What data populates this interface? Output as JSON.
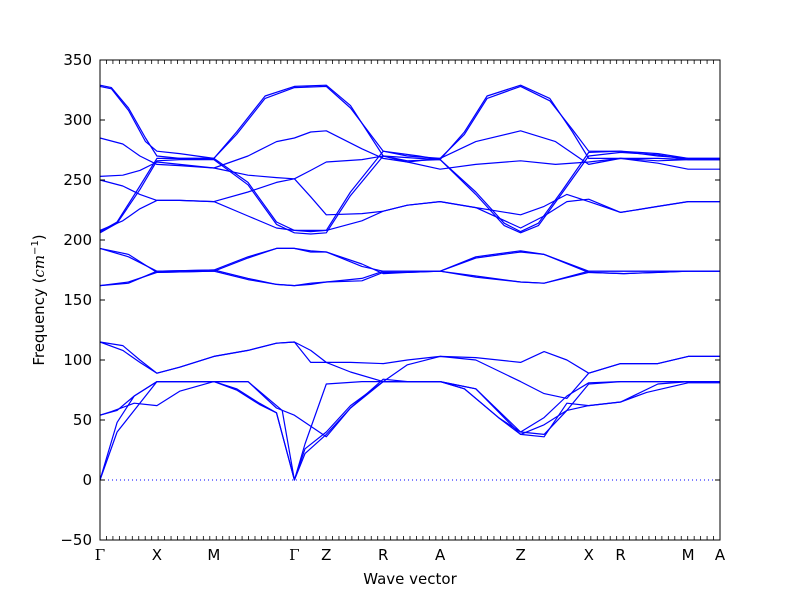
{
  "chart_data": {
    "type": "line",
    "xlabel": "Wave vector",
    "ylabel": {
      "text": "Frequency (",
      "unit_base": "cm",
      "unit_exp": "−1",
      "close": ")"
    },
    "ylim": [
      -50,
      350
    ],
    "yticks": [
      -50,
      0,
      50,
      100,
      150,
      200,
      250,
      300,
      350
    ],
    "grid": false,
    "color": "#0000ff",
    "kpoints": [
      {
        "label": "Γ",
        "x": 0
      },
      {
        "label": "X",
        "x": 0.5
      },
      {
        "label": "M",
        "x": 1.0
      },
      {
        "label": "Γ",
        "x": 1.707
      },
      {
        "label": "Z",
        "x": 1.987
      },
      {
        "label": "R",
        "x": 2.487
      },
      {
        "label": "A",
        "x": 2.987
      },
      {
        "label": "Z",
        "x": 3.694
      },
      {
        "label": "X",
        "x": 4.292
      },
      {
        "label": "R",
        "x": 4.572
      },
      {
        "label": "M",
        "x": 5.165
      },
      {
        "label": "A",
        "x": 5.445
      }
    ],
    "zero_line": 0,
    "series": [
      {
        "x": [
          0,
          0.15,
          0.3,
          0.5,
          0.7,
          0.85,
          1.0,
          1.2,
          1.4,
          1.55,
          1.707,
          1.8,
          1.987,
          2.2,
          2.487,
          2.7,
          2.987,
          3.2,
          3.5,
          3.694,
          3.9,
          4.1,
          4.292,
          4.572,
          4.8,
          5.165,
          5.445
        ],
        "y": [
          0,
          40,
          58,
          82,
          82,
          82,
          82,
          75,
          63,
          56,
          0,
          22,
          38,
          60,
          82,
          82,
          82,
          76,
          52,
          38,
          46,
          58,
          62,
          65,
          73,
          81,
          81
        ]
      },
      {
        "x": [
          0,
          0.15,
          0.3,
          0.5,
          0.7,
          0.85,
          1.0,
          1.2,
          1.4,
          1.55,
          1.707,
          1.8,
          1.987,
          2.2,
          2.487,
          2.7,
          2.987,
          3.2,
          3.5,
          3.694,
          3.9,
          4.1,
          4.292,
          4.572,
          4.8,
          5.165,
          5.445
        ],
        "y": [
          0,
          48,
          70,
          82,
          82,
          82,
          82,
          76,
          64,
          56,
          0,
          26,
          40,
          62,
          82,
          82,
          82,
          76,
          52,
          40,
          52,
          70,
          81,
          82,
          82,
          82,
          82
        ]
      },
      {
        "x": [
          0,
          0.1,
          0.3,
          0.5,
          0.7,
          1.0,
          1.3,
          1.6,
          1.707,
          1.8,
          1.987,
          2.3,
          2.487,
          2.7,
          2.987,
          3.3,
          3.694,
          3.9,
          4.1,
          4.292,
          4.572,
          4.9,
          5.165,
          5.445
        ],
        "y": [
          54,
          57,
          64,
          62,
          74,
          82,
          82,
          58,
          0,
          30,
          80,
          82,
          82,
          82,
          82,
          76,
          40,
          38,
          58,
          80,
          82,
          82,
          82,
          82
        ]
      },
      {
        "x": [
          0,
          0.15,
          0.3,
          0.5,
          0.7,
          0.85,
          1.0,
          1.3,
          1.55,
          1.707,
          1.8,
          1.987,
          2.2,
          2.487,
          2.7,
          2.987,
          3.3,
          3.694,
          3.9,
          4.1,
          4.292,
          4.572,
          4.9,
          5.165,
          5.445
        ],
        "y": [
          54,
          58,
          70,
          82,
          82,
          82,
          82,
          82,
          60,
          54,
          48,
          36,
          60,
          84,
          82,
          82,
          76,
          38,
          36,
          64,
          62,
          65,
          80,
          82,
          82
        ]
      },
      {
        "x": [
          0,
          0.2,
          0.35,
          0.5,
          0.7,
          1.0,
          1.3,
          1.55,
          1.707,
          1.85,
          1.987,
          2.2,
          2.487,
          2.7,
          2.987,
          3.3,
          3.694,
          3.9,
          4.1,
          4.292,
          4.572,
          4.9,
          5.165,
          5.445
        ],
        "y": [
          115,
          112,
          100,
          89,
          94,
          103,
          108,
          114,
          115,
          108,
          98,
          98,
          97,
          100,
          103,
          102,
          98,
          107,
          100,
          89,
          97,
          97,
          103,
          103
        ]
      },
      {
        "x": [
          0,
          0.2,
          0.35,
          0.5,
          0.7,
          1.0,
          1.3,
          1.55,
          1.707,
          1.85,
          1.987,
          2.2,
          2.487,
          2.7,
          2.987,
          3.3,
          3.694,
          3.9,
          4.1,
          4.292,
          4.572,
          4.9,
          5.165,
          5.445
        ],
        "y": [
          115,
          108,
          98,
          89,
          94,
          103,
          108,
          114,
          115,
          98,
          98,
          90,
          82,
          96,
          103,
          100,
          82,
          72,
          68,
          89,
          97,
          97,
          103,
          103
        ]
      },
      {
        "x": [
          0,
          0.25,
          0.5,
          1.0,
          1.3,
          1.55,
          1.707,
          1.85,
          1.987,
          2.3,
          2.487,
          2.7,
          2.987,
          3.3,
          3.694,
          3.9,
          4.292,
          4.6,
          4.9,
          5.165,
          5.445
        ],
        "y": [
          193,
          186,
          174,
          175,
          186,
          193,
          193,
          191,
          190,
          178,
          174,
          174,
          174,
          186,
          191,
          188,
          174,
          174,
          174,
          174,
          174
        ]
      },
      {
        "x": [
          0,
          0.25,
          0.5,
          1.0,
          1.3,
          1.55,
          1.707,
          1.85,
          1.987,
          2.3,
          2.487,
          2.7,
          2.987,
          3.3,
          3.694,
          3.9,
          4.292,
          4.6,
          4.9,
          5.165,
          5.445
        ],
        "y": [
          193,
          188,
          173,
          174,
          185,
          193,
          193,
          190,
          190,
          180,
          172,
          173,
          174,
          185,
          190,
          188,
          173,
          172,
          173,
          174,
          174
        ]
      },
      {
        "x": [
          0,
          0.25,
          0.5,
          1.0,
          1.3,
          1.55,
          1.707,
          1.85,
          1.987,
          2.3,
          2.487,
          2.7,
          2.987,
          3.3,
          3.694,
          3.9,
          4.292,
          4.6,
          4.9,
          5.165,
          5.445
        ],
        "y": [
          162,
          164,
          174,
          175,
          168,
          163,
          162,
          163,
          165,
          168,
          174,
          174,
          174,
          170,
          165,
          164,
          174,
          174,
          174,
          174,
          174
        ]
      },
      {
        "x": [
          0,
          0.25,
          0.5,
          1.0,
          1.3,
          1.55,
          1.707,
          1.85,
          1.987,
          2.3,
          2.487,
          2.7,
          2.987,
          3.3,
          3.694,
          3.9,
          4.292,
          4.6,
          4.9,
          5.165,
          5.445
        ],
        "y": [
          162,
          165,
          173,
          174,
          167,
          163,
          162,
          164,
          165,
          166,
          173,
          173,
          174,
          169,
          165,
          164,
          173,
          172,
          173,
          174,
          174
        ]
      },
      {
        "x": [
          0,
          0.15,
          0.35,
          0.5,
          0.7,
          1.0,
          1.3,
          1.55,
          1.707,
          1.85,
          1.987,
          2.2,
          2.487,
          2.8,
          2.987,
          3.3,
          3.55,
          3.694,
          3.85,
          4.05,
          4.292,
          4.572,
          4.9,
          5.165,
          5.445
        ],
        "y": [
          207,
          215,
          245,
          268,
          268,
          268,
          248,
          215,
          208,
          208,
          208,
          240,
          274,
          270,
          267,
          240,
          214,
          207,
          214,
          240,
          273,
          274,
          272,
          268,
          268
        ]
      },
      {
        "x": [
          0,
          0.15,
          0.35,
          0.5,
          0.7,
          1.0,
          1.3,
          1.55,
          1.707,
          1.85,
          1.987,
          2.2,
          2.487,
          2.8,
          2.987,
          3.3,
          3.55,
          3.694,
          3.85,
          4.05,
          4.292,
          4.572,
          4.9,
          5.165,
          5.445
        ],
        "y": [
          206,
          214,
          242,
          266,
          267,
          267,
          246,
          213,
          206,
          205,
          206,
          237,
          270,
          268,
          267,
          238,
          212,
          206,
          212,
          238,
          270,
          273,
          271,
          267,
          267
        ]
      },
      {
        "x": [
          0,
          0.2,
          0.35,
          0.5,
          0.7,
          1.0,
          1.3,
          1.55,
          1.707,
          1.85,
          1.987,
          2.3,
          2.487,
          2.7,
          2.987,
          3.3,
          3.694,
          4.0,
          4.292,
          4.572,
          4.9,
          5.165,
          5.445
        ],
        "y": [
          285,
          280,
          270,
          263,
          262,
          260,
          270,
          282,
          285,
          290,
          291,
          276,
          268,
          265,
          268,
          282,
          291,
          282,
          263,
          268,
          264,
          259,
          259
        ]
      },
      {
        "x": [
          0,
          0.2,
          0.35,
          0.5,
          0.7,
          1.0,
          1.3,
          1.55,
          1.707,
          1.85,
          1.987,
          2.3,
          2.487,
          2.7,
          2.987,
          3.3,
          3.694,
          4.0,
          4.292,
          4.572,
          4.9,
          5.165,
          5.445
        ],
        "y": [
          253,
          254,
          258,
          265,
          263,
          260,
          254,
          252,
          251,
          258,
          265,
          267,
          270,
          265,
          259,
          263,
          266,
          263,
          265,
          268,
          266,
          267,
          267
        ]
      },
      {
        "x": [
          0,
          0.2,
          0.35,
          0.5,
          0.7,
          1.0,
          1.3,
          1.55,
          1.707,
          1.85,
          1.987,
          2.3,
          2.487,
          2.7,
          2.987,
          3.3,
          3.694,
          3.9,
          4.1,
          4.292,
          4.572,
          4.9,
          5.165,
          5.445
        ],
        "y": [
          250,
          245,
          238,
          233,
          233,
          232,
          240,
          248,
          251,
          236,
          221,
          222,
          224,
          229,
          232,
          227,
          221,
          228,
          238,
          232,
          223,
          228,
          232,
          232
        ]
      },
      {
        "x": [
          0,
          0.2,
          0.35,
          0.5,
          0.7,
          1.0,
          1.3,
          1.55,
          1.707,
          1.85,
          1.987,
          2.3,
          2.487,
          2.7,
          2.987,
          3.3,
          3.694,
          3.9,
          4.1,
          4.292,
          4.572,
          4.9,
          5.165,
          5.445
        ],
        "y": [
          208,
          216,
          226,
          233,
          233,
          232,
          220,
          210,
          208,
          207,
          208,
          216,
          224,
          229,
          232,
          227,
          210,
          220,
          232,
          234,
          223,
          228,
          232,
          232
        ]
      },
      {
        "x": [
          0,
          0.1,
          0.25,
          0.4,
          0.5,
          0.7,
          1.0,
          1.2,
          1.45,
          1.707,
          1.987,
          2.2,
          2.487,
          2.7,
          2.987,
          3.2,
          3.4,
          3.694,
          3.95,
          4.15,
          4.292,
          4.572,
          4.9,
          5.165,
          5.445
        ],
        "y": [
          329,
          327,
          310,
          285,
          270,
          268,
          268,
          290,
          320,
          328,
          329,
          312,
          270,
          266,
          267,
          290,
          320,
          329,
          318,
          290,
          268,
          268,
          268,
          267,
          267
        ]
      },
      {
        "x": [
          0,
          0.1,
          0.25,
          0.4,
          0.5,
          0.7,
          1.0,
          1.2,
          1.45,
          1.707,
          1.987,
          2.2,
          2.487,
          2.7,
          2.987,
          3.2,
          3.4,
          3.694,
          3.95,
          4.15,
          4.292,
          4.572,
          4.9,
          5.165,
          5.445
        ],
        "y": [
          328,
          326,
          308,
          282,
          274,
          272,
          268,
          288,
          318,
          327,
          328,
          310,
          274,
          270,
          268,
          288,
          318,
          328,
          316,
          292,
          274,
          274,
          270,
          268,
          268
        ]
      }
    ]
  }
}
